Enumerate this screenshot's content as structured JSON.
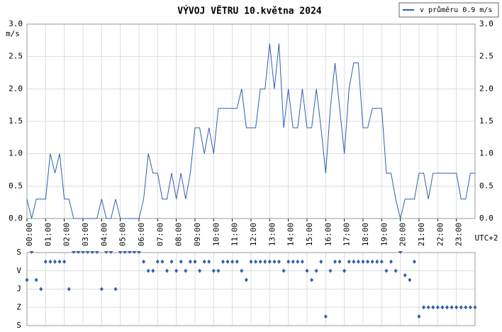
{
  "chart_data": [
    {
      "type": "line",
      "title": "VÝVOJ VĚTRU  10.května 2024",
      "y_unit": "m/s",
      "x_note": "UTC+2",
      "grid": true,
      "legend": "top-right",
      "x": [
        0,
        0.25,
        0.5,
        0.75,
        1,
        1.25,
        1.5,
        1.75,
        2,
        2.25,
        2.5,
        2.75,
        3,
        3.25,
        3.5,
        3.75,
        4,
        4.25,
        4.5,
        4.75,
        5,
        5.25,
        5.5,
        5.75,
        6,
        6.25,
        6.5,
        6.75,
        7,
        7.25,
        7.5,
        7.75,
        8,
        8.25,
        8.5,
        8.75,
        9,
        9.25,
        9.5,
        9.75,
        10,
        10.25,
        10.5,
        10.75,
        11,
        11.25,
        11.5,
        11.75,
        12,
        12.25,
        12.5,
        12.75,
        13,
        13.25,
        13.5,
        13.75,
        14,
        14.25,
        14.5,
        14.75,
        15,
        15.25,
        15.5,
        15.75,
        16,
        16.25,
        16.5,
        16.75,
        17,
        17.25,
        17.5,
        17.75,
        18,
        18.25,
        18.5,
        18.75,
        19,
        19.25,
        19.5,
        19.75,
        20,
        20.25,
        20.5,
        20.75,
        21,
        21.25,
        21.5,
        21.75,
        22,
        22.25,
        22.5,
        22.75,
        23,
        23.25,
        23.5,
        23.75,
        24
      ],
      "series": [
        {
          "name": "v průměru 0.9 m/s",
          "color": "#2f5fb0",
          "values": [
            0.3,
            0,
            0.3,
            0.3,
            0.3,
            1.0,
            0.7,
            1.0,
            0.3,
            0.3,
            0,
            0,
            0,
            0,
            0,
            0,
            0.3,
            0,
            0,
            0.3,
            0,
            0,
            0,
            0,
            0,
            0.3,
            1.0,
            0.7,
            0.7,
            0.3,
            0.3,
            0.7,
            0.3,
            0.7,
            0.3,
            0.7,
            1.4,
            1.4,
            1.0,
            1.4,
            1.0,
            1.7,
            1.7,
            1.7,
            1.7,
            1.7,
            2.0,
            1.4,
            1.4,
            1.4,
            2.0,
            2.0,
            2.7,
            2.0,
            2.7,
            1.4,
            2.0,
            1.4,
            1.4,
            2.0,
            1.4,
            1.4,
            2.0,
            1.4,
            0.7,
            1.7,
            2.4,
            1.7,
            1.0,
            2.0,
            2.4,
            2.4,
            1.4,
            1.4,
            1.7,
            1.7,
            1.7,
            0.7,
            0.7,
            0.3,
            0,
            0.3,
            0.3,
            0.3,
            0.7,
            0.7,
            0.3,
            0.7,
            0.7,
            0.7,
            0.7,
            0.7,
            0.7,
            0.3,
            0.3,
            0.7,
            0.7
          ]
        }
      ],
      "xlim": [
        0,
        24
      ],
      "xticks": [
        {
          "value": 0,
          "label": "00:00"
        },
        {
          "value": 1,
          "label": "01:00"
        },
        {
          "value": 2,
          "label": "02:00"
        },
        {
          "value": 3,
          "label": "03:00"
        },
        {
          "value": 4,
          "label": "04:00"
        },
        {
          "value": 5,
          "label": "05:00"
        },
        {
          "value": 6,
          "label": "06:00"
        },
        {
          "value": 7,
          "label": "07:00"
        },
        {
          "value": 8,
          "label": "08:00"
        },
        {
          "value": 9,
          "label": "09:00"
        },
        {
          "value": 10,
          "label": "10:00"
        },
        {
          "value": 11,
          "label": "11:00"
        },
        {
          "value": 12,
          "label": "12:00"
        },
        {
          "value": 13,
          "label": "13:00"
        },
        {
          "value": 14,
          "label": "14:00"
        },
        {
          "value": 15,
          "label": "15:00"
        },
        {
          "value": 16,
          "label": "16:00"
        },
        {
          "value": 17,
          "label": "17:00"
        },
        {
          "value": 18,
          "label": "18:00"
        },
        {
          "value": 19,
          "label": "19:00"
        },
        {
          "value": 20,
          "label": "20:00"
        },
        {
          "value": 21,
          "label": "21:00"
        },
        {
          "value": 22,
          "label": "22:00"
        },
        {
          "value": 23,
          "label": "23:00"
        }
      ],
      "ylim": [
        0,
        3
      ],
      "yticks": [
        {
          "value": 0,
          "label": "0.0"
        },
        {
          "value": 0.5,
          "label": "0.5"
        },
        {
          "value": 1,
          "label": "1.0"
        },
        {
          "value": 1.5,
          "label": "1.5"
        },
        {
          "value": 2,
          "label": "2.0"
        },
        {
          "value": 2.5,
          "label": "2.5"
        },
        {
          "value": 3,
          "label": "3.0"
        }
      ]
    },
    {
      "type": "scatter",
      "color": "#2f5fb0",
      "values": [
        135,
        0,
        135,
        180,
        45,
        45,
        45,
        45,
        45,
        180,
        0,
        0,
        0,
        0,
        0,
        0,
        180,
        0,
        0,
        180,
        0,
        0,
        0,
        0,
        0,
        45,
        90,
        90,
        45,
        45,
        90,
        45,
        90,
        45,
        90,
        45,
        45,
        90,
        45,
        45,
        90,
        90,
        45,
        45,
        45,
        45,
        90,
        135,
        45,
        45,
        45,
        45,
        45,
        45,
        45,
        90,
        45,
        45,
        45,
        45,
        90,
        135,
        90,
        45,
        315,
        90,
        45,
        45,
        90,
        45,
        45,
        45,
        45,
        45,
        45,
        45,
        45,
        90,
        45,
        90,
        0,
        112,
        135,
        45,
        315,
        270,
        270,
        270,
        270,
        270,
        270,
        270,
        270,
        270,
        270,
        270,
        270
      ],
      "ylim": [
        0,
        360
      ],
      "yticks": [
        {
          "value": 0,
          "label": "S"
        },
        {
          "value": 90,
          "label": "V"
        },
        {
          "value": 180,
          "label": "J"
        },
        {
          "value": 270,
          "label": "Z"
        },
        {
          "value": 360,
          "label": "S"
        }
      ]
    }
  ]
}
